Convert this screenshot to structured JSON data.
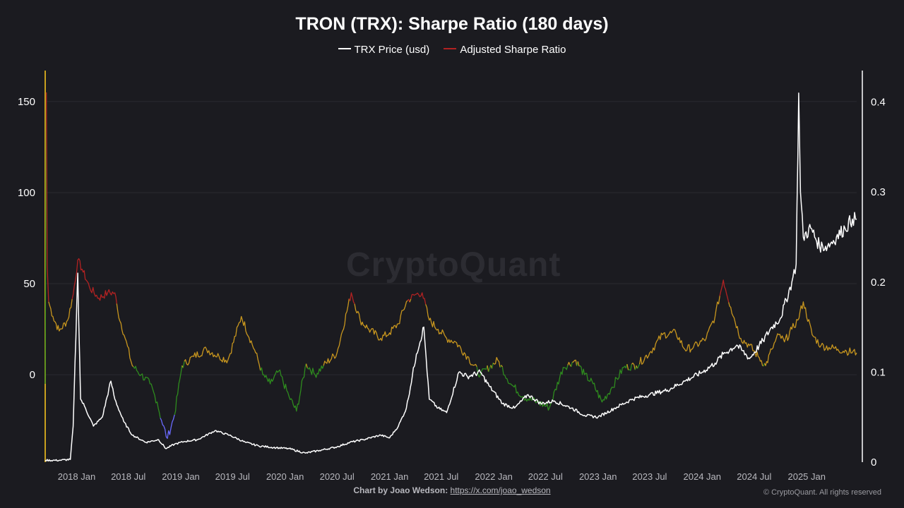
{
  "colors": {
    "background": "#1b1b20",
    "price": "#ffffff",
    "sharpe_high": "#b22222",
    "sharpe_mid": "#c8961e",
    "sharpe_low": "#2e8b1e",
    "sharpe_very_low": "#6a6aff",
    "left_axis": "#c8a01e",
    "grid": "#2b2b31"
  },
  "chart_data": {
    "type": "line",
    "title": "TRON (TRX): Sharpe Ratio (180 days)",
    "legend": [
      "TRX Price (usd)",
      "Adjusted Sharpe Ratio"
    ],
    "legend_position": "top-center",
    "grid": true,
    "xlim": [
      "2017-09-13",
      "2025-06-25"
    ],
    "x_tick_labels": [
      "2018 Jan",
      "2018 Jul",
      "2019 Jan",
      "2019 Jul",
      "2020 Jan",
      "2020 Jul",
      "2021 Jan",
      "2021 Jul",
      "2022 Jan",
      "2022 Jul",
      "2023 Jan",
      "2023 Jul",
      "2024 Jan",
      "2024 Jul",
      "2025 Jan"
    ],
    "y_left": {
      "label": "",
      "ticks": [
        "0",
        "50",
        "100",
        "150"
      ],
      "ylim": [
        -48,
        167
      ]
    },
    "y_right": {
      "label": "",
      "ticks": [
        "0",
        "0.1",
        "0.2",
        "0.3",
        "0.4"
      ],
      "ylim": [
        0,
        0.435
      ]
    },
    "series": [
      {
        "name": "TRX Price (usd)",
        "axis": "right",
        "x": [
          "2017-09-13",
          "2017-11-01",
          "2017-12-10",
          "2017-12-20",
          "2018-01-05",
          "2018-01-15",
          "2018-02-01",
          "2018-03-01",
          "2018-04-01",
          "2018-05-01",
          "2018-05-15",
          "2018-06-15",
          "2018-07-15",
          "2018-09-01",
          "2018-10-15",
          "2018-11-10",
          "2018-12-10",
          "2019-01-15",
          "2019-03-01",
          "2019-05-01",
          "2019-06-20",
          "2019-08-15",
          "2019-10-01",
          "2019-12-01",
          "2020-01-15",
          "2020-03-12",
          "2020-05-01",
          "2020-07-01",
          "2020-08-15",
          "2020-10-01",
          "2020-12-01",
          "2021-01-01",
          "2021-02-01",
          "2021-03-01",
          "2021-04-05",
          "2021-05-01",
          "2021-05-20",
          "2021-06-20",
          "2021-07-20",
          "2021-09-01",
          "2021-10-01",
          "2021-11-15",
          "2021-12-15",
          "2022-02-01",
          "2022-03-15",
          "2022-05-01",
          "2022-06-15",
          "2022-08-01",
          "2022-10-01",
          "2022-11-15",
          "2023-01-01",
          "2023-03-01",
          "2023-05-01",
          "2023-07-01",
          "2023-09-01",
          "2023-11-01",
          "2024-01-01",
          "2024-02-15",
          "2024-03-15",
          "2024-05-01",
          "2024-06-15",
          "2024-08-01",
          "2024-09-01",
          "2024-10-01",
          "2024-11-10",
          "2024-11-25",
          "2024-12-04",
          "2024-12-10",
          "2024-12-20",
          "2025-01-15",
          "2025-02-15",
          "2025-03-15",
          "2025-04-15",
          "2025-05-15",
          "2025-06-10",
          "2025-06-25"
        ],
        "values": [
          0.002,
          0.002,
          0.003,
          0.04,
          0.21,
          0.07,
          0.06,
          0.04,
          0.05,
          0.09,
          0.07,
          0.045,
          0.03,
          0.022,
          0.025,
          0.015,
          0.02,
          0.023,
          0.025,
          0.035,
          0.03,
          0.022,
          0.018,
          0.016,
          0.015,
          0.01,
          0.013,
          0.017,
          0.022,
          0.025,
          0.03,
          0.027,
          0.04,
          0.06,
          0.12,
          0.15,
          0.07,
          0.06,
          0.055,
          0.1,
          0.095,
          0.1,
          0.085,
          0.065,
          0.06,
          0.075,
          0.065,
          0.068,
          0.06,
          0.052,
          0.05,
          0.06,
          0.07,
          0.075,
          0.08,
          0.09,
          0.1,
          0.11,
          0.12,
          0.13,
          0.115,
          0.135,
          0.15,
          0.16,
          0.2,
          0.22,
          0.41,
          0.3,
          0.25,
          0.26,
          0.24,
          0.24,
          0.25,
          0.26,
          0.27,
          0.27
        ]
      },
      {
        "name": "Adjusted Sharpe Ratio",
        "axis": "left",
        "x": [
          "2017-09-13",
          "2017-09-17",
          "2017-09-20",
          "2017-09-25",
          "2017-10-10",
          "2017-11-01",
          "2017-12-01",
          "2017-12-20",
          "2018-01-05",
          "2018-01-20",
          "2018-02-15",
          "2018-03-20",
          "2018-04-20",
          "2018-05-15",
          "2018-05-25",
          "2018-06-20",
          "2018-07-15",
          "2018-08-15",
          "2018-09-15",
          "2018-10-10",
          "2018-10-25",
          "2018-11-15",
          "2018-12-10",
          "2019-01-05",
          "2019-02-15",
          "2019-04-01",
          "2019-05-15",
          "2019-06-15",
          "2019-08-01",
          "2019-09-20",
          "2019-10-15",
          "2019-11-10",
          "2019-12-10",
          "2020-01-15",
          "2020-02-10",
          "2020-03-15",
          "2020-04-15",
          "2020-05-15",
          "2020-07-01",
          "2020-08-20",
          "2020-09-20",
          "2020-10-20",
          "2020-12-01",
          "2021-01-01",
          "2021-02-01",
          "2021-03-01",
          "2021-04-01",
          "2021-04-25",
          "2021-05-20",
          "2021-06-20",
          "2021-07-20",
          "2021-08-20",
          "2021-10-01",
          "2021-11-15",
          "2022-01-15",
          "2022-03-01",
          "2022-04-15",
          "2022-06-01",
          "2022-07-15",
          "2022-09-01",
          "2022-10-15",
          "2022-11-15",
          "2022-12-15",
          "2023-01-15",
          "2023-02-15",
          "2023-04-01",
          "2023-05-15",
          "2023-07-01",
          "2023-08-15",
          "2023-10-01",
          "2023-11-01",
          "2023-12-01",
          "2024-01-15",
          "2024-02-15",
          "2024-03-15",
          "2024-04-10",
          "2024-05-15",
          "2024-06-15",
          "2024-07-15",
          "2024-08-10",
          "2024-09-01",
          "2024-09-25",
          "2024-10-15",
          "2024-11-10",
          "2024-12-01",
          "2024-12-20",
          "2025-01-20",
          "2025-02-20",
          "2025-03-20",
          "2025-04-20",
          "2025-05-20",
          "2025-06-25"
        ],
        "values": [
          -5,
          155,
          60,
          40,
          32,
          24,
          30,
          44,
          63,
          58,
          48,
          42,
          45,
          45,
          35,
          20,
          5,
          0,
          -5,
          -15,
          -25,
          -35,
          -22,
          5,
          10,
          14,
          10,
          8,
          32,
          12,
          0,
          -5,
          2,
          -12,
          -20,
          6,
          0,
          5,
          12,
          45,
          30,
          25,
          20,
          23,
          28,
          40,
          44,
          45,
          30,
          25,
          20,
          18,
          10,
          0,
          8,
          -5,
          -12,
          -15,
          -18,
          4,
          8,
          0,
          -5,
          -15,
          -8,
          4,
          5,
          12,
          22,
          23,
          14,
          15,
          20,
          32,
          52,
          37,
          20,
          16,
          10,
          5,
          14,
          22,
          18,
          25,
          30,
          40,
          22,
          16,
          15,
          14,
          13,
          12
        ]
      }
    ]
  },
  "footer": {
    "credit_label": "Chart by Joao Wedson:",
    "credit_link": "https://x.com/joao_wedson",
    "copyright": "© CryptoQuant. All rights reserved"
  },
  "watermark": "CryptoQuant"
}
